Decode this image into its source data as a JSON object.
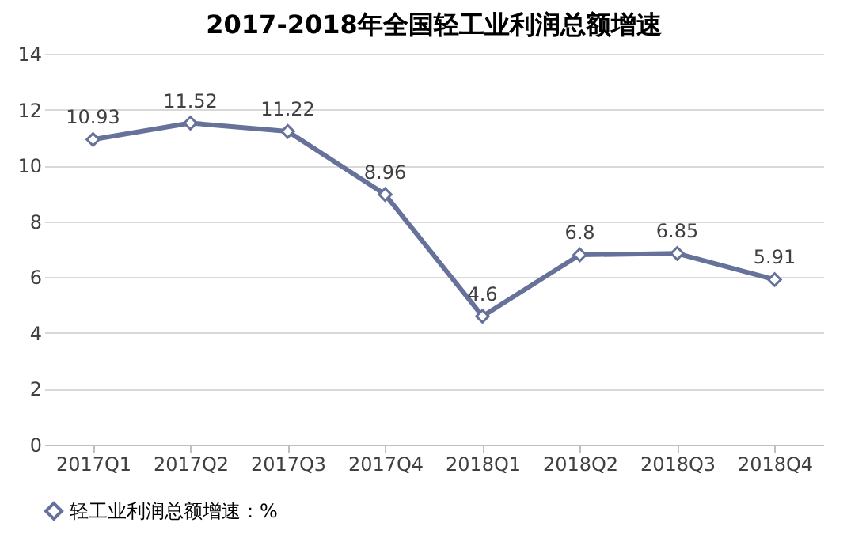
{
  "chart_data": {
    "type": "line",
    "title": "2017-2018年全国轻工业利润总额增速",
    "categories": [
      "2017Q1",
      "2017Q2",
      "2017Q3",
      "2017Q4",
      "2018Q1",
      "2018Q2",
      "2018Q3",
      "2018Q4"
    ],
    "series": [
      {
        "name": "轻工业利润总额增速：%",
        "color": "#66729a",
        "values": [
          10.93,
          11.52,
          11.22,
          8.96,
          4.6,
          6.8,
          6.85,
          5.91
        ]
      }
    ],
    "ylim": [
      0,
      14
    ],
    "yticks": [
      0,
      2,
      4,
      6,
      8,
      10,
      12,
      14
    ],
    "grid": "y",
    "legend": "bottom",
    "marker": "diamond",
    "line_style": "solid",
    "data_labels": true
  }
}
